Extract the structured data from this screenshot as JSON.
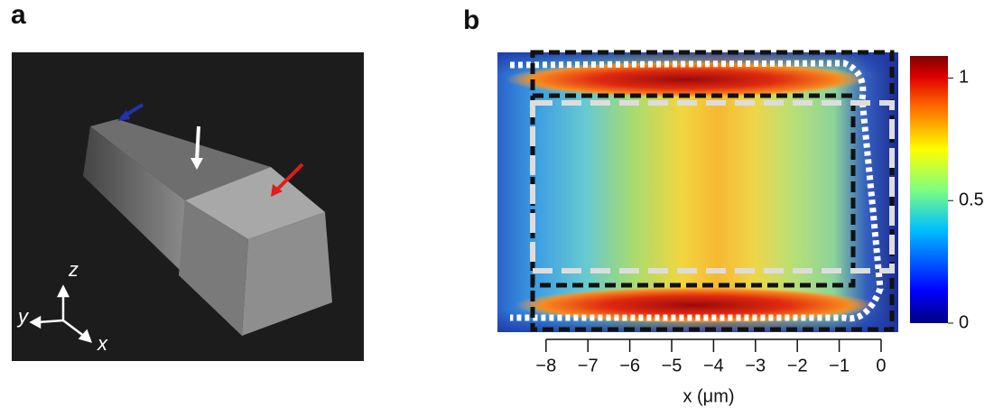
{
  "figure": {
    "panel_a": {
      "label": "a",
      "axis_labels": [
        "z",
        "y",
        "x"
      ]
    }
  },
  "chart_data": {
    "type": "heatmap",
    "panel_label": "b",
    "xlabel": "x (μm)",
    "xlim": [
      -9.16,
      0.41
    ],
    "xticks": [
      {
        "value": -8,
        "label": "−8"
      },
      {
        "value": -7,
        "label": "−7"
      },
      {
        "value": -6,
        "label": "−6"
      },
      {
        "value": -5,
        "label": "−5"
      },
      {
        "value": -4,
        "label": "−4"
      },
      {
        "value": -3,
        "label": "−3"
      },
      {
        "value": -2,
        "label": "−2"
      },
      {
        "value": -1,
        "label": "−1"
      },
      0
    ],
    "colorbar": {
      "lim": [
        0,
        1.09
      ],
      "ticks": [
        0,
        0.5,
        1
      ]
    }
  }
}
